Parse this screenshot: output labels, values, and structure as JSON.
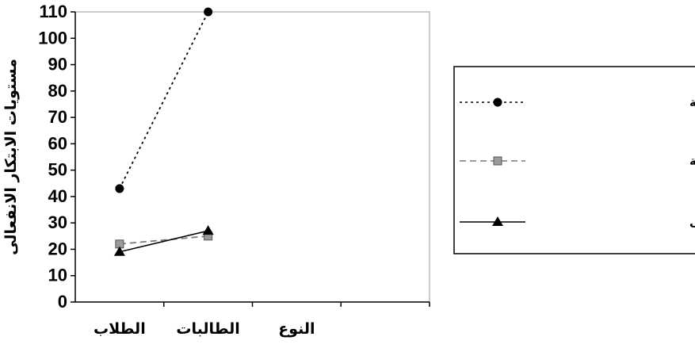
{
  "chart_data": {
    "type": "line",
    "categories": [
      "الطلاب",
      "الطالبات"
    ],
    "x_axis_extra_label": "النوع",
    "ylabel": "مستويات الابتكار الانفعالى",
    "ylim": [
      0,
      110
    ],
    "yticks": [
      0,
      10,
      20,
      30,
      40,
      50,
      60,
      70,
      80,
      90,
      100,
      110
    ],
    "grid": false,
    "legend_position": "right",
    "series": [
      {
        "name": "الجدة الانفعالية",
        "values": [
          43,
          110
        ],
        "style": "dotted",
        "marker": "circle",
        "color": "#000000"
      },
      {
        "name": "الفاعلية/الأصالة الانفعالية",
        "values": [
          22,
          25
        ],
        "style": "dashed",
        "marker": "square",
        "color": "#7a7a7a"
      },
      {
        "name": "الاستعداد الانفعالى",
        "values": [
          19,
          27
        ],
        "style": "solid",
        "marker": "triangle",
        "color": "#000000"
      }
    ]
  }
}
